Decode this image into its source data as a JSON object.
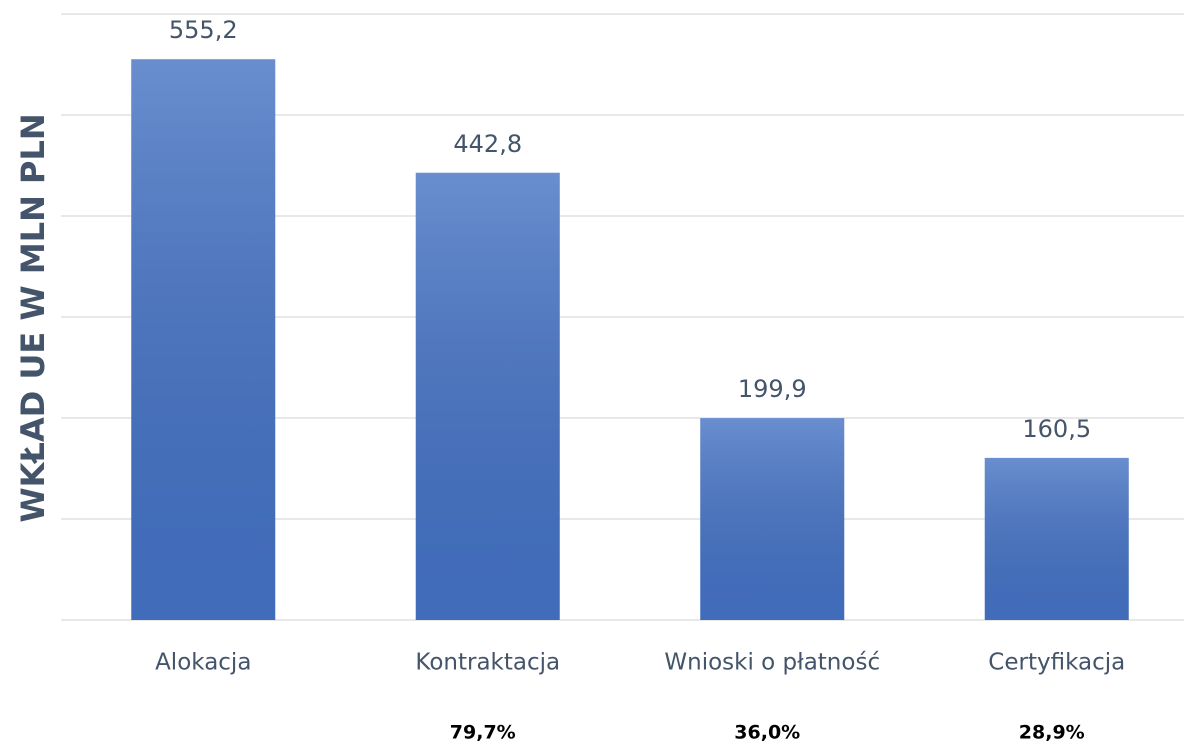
{
  "chart_data": {
    "type": "bar",
    "y_label": "WKŁAD UE W MLN PLN",
    "categories": [
      "Alokacja",
      "Kontraktacja",
      "Wnioski o płatność",
      "Certyfikacja"
    ],
    "values": [
      555.2,
      442.8,
      199.9,
      160.5
    ],
    "value_labels": [
      "555,2",
      "442,8",
      "199,9",
      "160,5"
    ],
    "color": "#4472c4",
    "ylim": [
      0,
      600
    ],
    "yticks": [
      0,
      100,
      200,
      300,
      400,
      500,
      600
    ],
    "grid": true,
    "annotations": [
      {
        "text": "79,7%",
        "category": "Kontraktacja"
      },
      {
        "text": "36,0%",
        "category": "Wnioski o płatność"
      },
      {
        "text": "28,9%",
        "category": "Certyfikacja"
      }
    ]
  }
}
